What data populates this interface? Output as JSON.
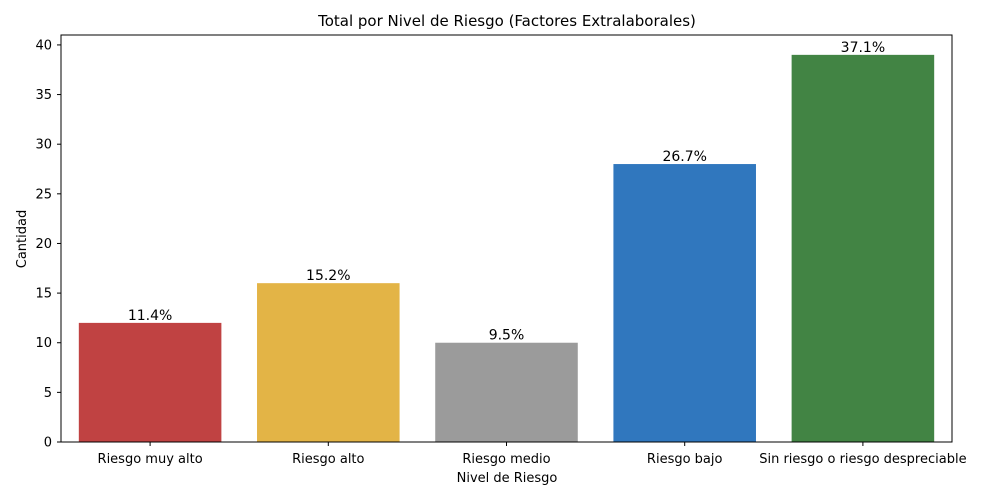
{
  "chart_data": {
    "type": "bar",
    "title": "Total por Nivel de Riesgo (Factores Extralaborales)",
    "xlabel": "Nivel de Riesgo",
    "ylabel": "Cantidad",
    "categories": [
      "Riesgo muy alto",
      "Riesgo alto",
      "Riesgo medio",
      "Riesgo bajo",
      "Sin riesgo o riesgo despreciable"
    ],
    "values": [
      12,
      16,
      10,
      28,
      39
    ],
    "data_labels": [
      "11.4%",
      "15.2%",
      "9.5%",
      "26.7%",
      "37.1%"
    ],
    "colors": [
      "#c04242",
      "#e3b446",
      "#9b9b9b",
      "#3077be",
      "#428444"
    ],
    "ylim": [
      0,
      41
    ],
    "yticks": [
      0,
      5,
      10,
      15,
      20,
      25,
      30,
      35,
      40
    ],
    "grid": false,
    "legend": "none"
  }
}
